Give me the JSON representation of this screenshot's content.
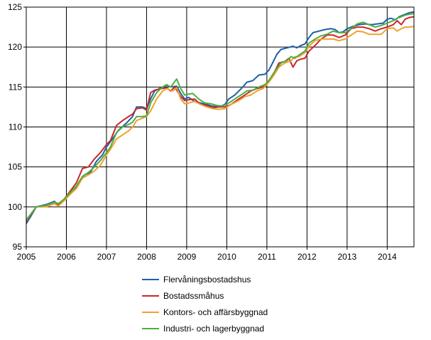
{
  "chart_data": {
    "type": "line",
    "title": "",
    "xlabel": "",
    "ylabel": "",
    "xlim": [
      2005.0,
      2014.667
    ],
    "ylim": [
      95,
      125
    ],
    "x_ticks": [
      "2005",
      "2006",
      "2007",
      "2008",
      "2009",
      "2010",
      "2011",
      "2012",
      "2013",
      "2014"
    ],
    "y_ticks": [
      "95",
      "100",
      "105",
      "110",
      "115",
      "120",
      "125"
    ],
    "grid": true,
    "legend_position": "bottom",
    "series": [
      {
        "name": "Flervåningsbostadshus",
        "color": "#1f5fa8",
        "points": [
          [
            2005.0,
            97.9
          ],
          [
            2005.1,
            98.7
          ],
          [
            2005.25,
            100.0
          ],
          [
            2005.5,
            100.3
          ],
          [
            2005.7,
            100.7
          ],
          [
            2005.8,
            100.3
          ],
          [
            2005.95,
            100.9
          ],
          [
            2006.1,
            101.9
          ],
          [
            2006.25,
            102.5
          ],
          [
            2006.45,
            104.0
          ],
          [
            2006.6,
            104.3
          ],
          [
            2006.75,
            105.7
          ],
          [
            2006.9,
            106.5
          ],
          [
            2007.0,
            107.5
          ],
          [
            2007.15,
            108.5
          ],
          [
            2007.3,
            109.6
          ],
          [
            2007.5,
            110.5
          ],
          [
            2007.65,
            111.3
          ],
          [
            2007.75,
            112.5
          ],
          [
            2007.9,
            112.5
          ],
          [
            2008.0,
            112.3
          ],
          [
            2008.1,
            113.5
          ],
          [
            2008.2,
            114.5
          ],
          [
            2008.4,
            115.0
          ],
          [
            2008.5,
            115.2
          ],
          [
            2008.6,
            115.0
          ],
          [
            2008.75,
            115.1
          ],
          [
            2008.85,
            114.2
          ],
          [
            2008.95,
            113.5
          ],
          [
            2009.05,
            113.7
          ],
          [
            2009.2,
            113.2
          ],
          [
            2009.35,
            113.0
          ],
          [
            2009.5,
            112.8
          ],
          [
            2009.65,
            112.6
          ],
          [
            2009.8,
            112.5
          ],
          [
            2009.95,
            112.8
          ],
          [
            2010.05,
            113.5
          ],
          [
            2010.2,
            114.0
          ],
          [
            2010.4,
            115.0
          ],
          [
            2010.5,
            115.6
          ],
          [
            2010.65,
            115.8
          ],
          [
            2010.8,
            116.5
          ],
          [
            2010.95,
            116.6
          ],
          [
            2011.05,
            117.1
          ],
          [
            2011.15,
            118.1
          ],
          [
            2011.25,
            119.1
          ],
          [
            2011.35,
            119.7
          ],
          [
            2011.5,
            119.9
          ],
          [
            2011.65,
            120.1
          ],
          [
            2011.75,
            119.9
          ],
          [
            2011.85,
            120.2
          ],
          [
            2011.95,
            120.4
          ],
          [
            2012.05,
            121.2
          ],
          [
            2012.15,
            121.8
          ],
          [
            2012.3,
            122.0
          ],
          [
            2012.45,
            122.2
          ],
          [
            2012.6,
            122.3
          ],
          [
            2012.7,
            122.2
          ],
          [
            2012.8,
            121.8
          ],
          [
            2012.9,
            121.9
          ],
          [
            2013.0,
            122.3
          ],
          [
            2013.15,
            122.6
          ],
          [
            2013.3,
            122.8
          ],
          [
            2013.45,
            122.9
          ],
          [
            2013.6,
            122.8
          ],
          [
            2013.75,
            122.9
          ],
          [
            2013.9,
            123.0
          ],
          [
            2014.0,
            123.5
          ],
          [
            2014.1,
            123.6
          ],
          [
            2014.2,
            123.4
          ],
          [
            2014.3,
            123.8
          ],
          [
            2014.4,
            124.0
          ],
          [
            2014.55,
            124.3
          ],
          [
            2014.667,
            124.4
          ]
        ]
      },
      {
        "name": "Bostadssmåhus",
        "color": "#c8272d",
        "points": [
          [
            2005.0,
            98.2
          ],
          [
            2005.1,
            98.9
          ],
          [
            2005.25,
            100.0
          ],
          [
            2005.5,
            100.1
          ],
          [
            2005.7,
            100.6
          ],
          [
            2005.8,
            100.3
          ],
          [
            2005.95,
            101.0
          ],
          [
            2006.1,
            102.0
          ],
          [
            2006.25,
            103.0
          ],
          [
            2006.4,
            104.8
          ],
          [
            2006.55,
            105.0
          ],
          [
            2006.7,
            106.0
          ],
          [
            2006.85,
            106.8
          ],
          [
            2007.0,
            107.8
          ],
          [
            2007.1,
            108.3
          ],
          [
            2007.25,
            110.2
          ],
          [
            2007.4,
            110.8
          ],
          [
            2007.55,
            111.3
          ],
          [
            2007.65,
            111.6
          ],
          [
            2007.75,
            112.3
          ],
          [
            2007.9,
            112.4
          ],
          [
            2008.0,
            112.1
          ],
          [
            2008.1,
            114.3
          ],
          [
            2008.2,
            114.6
          ],
          [
            2008.35,
            114.8
          ],
          [
            2008.5,
            114.9
          ],
          [
            2008.6,
            114.5
          ],
          [
            2008.7,
            115.0
          ],
          [
            2008.85,
            113.8
          ],
          [
            2008.95,
            113.3
          ],
          [
            2009.05,
            113.4
          ],
          [
            2009.2,
            113.5
          ],
          [
            2009.35,
            112.8
          ],
          [
            2009.5,
            112.7
          ],
          [
            2009.65,
            112.4
          ],
          [
            2009.8,
            112.5
          ],
          [
            2009.95,
            112.5
          ],
          [
            2010.1,
            112.8
          ],
          [
            2010.3,
            113.5
          ],
          [
            2010.45,
            114.0
          ],
          [
            2010.6,
            114.5
          ],
          [
            2010.75,
            114.8
          ],
          [
            2010.9,
            115.0
          ],
          [
            2011.0,
            115.5
          ],
          [
            2011.15,
            116.5
          ],
          [
            2011.3,
            118.0
          ],
          [
            2011.45,
            118.2
          ],
          [
            2011.55,
            118.6
          ],
          [
            2011.65,
            117.5
          ],
          [
            2011.75,
            118.3
          ],
          [
            2011.85,
            118.5
          ],
          [
            2011.95,
            118.6
          ],
          [
            2012.05,
            119.5
          ],
          [
            2012.2,
            120.2
          ],
          [
            2012.35,
            121.0
          ],
          [
            2012.5,
            121.5
          ],
          [
            2012.65,
            121.5
          ],
          [
            2012.8,
            121.2
          ],
          [
            2012.95,
            121.5
          ],
          [
            2013.1,
            122.3
          ],
          [
            2013.25,
            122.5
          ],
          [
            2013.4,
            122.5
          ],
          [
            2013.55,
            122.3
          ],
          [
            2013.7,
            122.0
          ],
          [
            2013.85,
            122.3
          ],
          [
            2014.0,
            122.5
          ],
          [
            2014.15,
            122.8
          ],
          [
            2014.25,
            123.3
          ],
          [
            2014.35,
            122.8
          ],
          [
            2014.45,
            123.5
          ],
          [
            2014.55,
            123.7
          ],
          [
            2014.667,
            123.8
          ]
        ]
      },
      {
        "name": "Kontors- och affärsbyggnad",
        "color": "#f0a030",
        "points": [
          [
            2005.0,
            98.3
          ],
          [
            2005.1,
            99.0
          ],
          [
            2005.25,
            100.0
          ],
          [
            2005.5,
            100.0
          ],
          [
            2005.7,
            100.4
          ],
          [
            2005.8,
            100.1
          ],
          [
            2005.95,
            100.8
          ],
          [
            2006.1,
            101.6
          ],
          [
            2006.25,
            102.3
          ],
          [
            2006.4,
            103.6
          ],
          [
            2006.55,
            104.0
          ],
          [
            2006.7,
            104.5
          ],
          [
            2006.85,
            105.2
          ],
          [
            2007.0,
            106.5
          ],
          [
            2007.1,
            107.2
          ],
          [
            2007.25,
            108.5
          ],
          [
            2007.4,
            109.0
          ],
          [
            2007.55,
            109.5
          ],
          [
            2007.65,
            110.0
          ],
          [
            2007.75,
            110.8
          ],
          [
            2007.9,
            111.1
          ],
          [
            2008.0,
            111.3
          ],
          [
            2008.1,
            112.0
          ],
          [
            2008.25,
            113.5
          ],
          [
            2008.4,
            114.5
          ],
          [
            2008.5,
            114.8
          ],
          [
            2008.65,
            114.5
          ],
          [
            2008.75,
            114.9
          ],
          [
            2008.85,
            113.5
          ],
          [
            2008.95,
            112.9
          ],
          [
            2009.05,
            113.0
          ],
          [
            2009.2,
            113.2
          ],
          [
            2009.35,
            112.8
          ],
          [
            2009.5,
            112.5
          ],
          [
            2009.65,
            112.3
          ],
          [
            2009.8,
            112.2
          ],
          [
            2009.95,
            112.3
          ],
          [
            2010.1,
            112.8
          ],
          [
            2010.3,
            113.3
          ],
          [
            2010.45,
            113.8
          ],
          [
            2010.6,
            114.0
          ],
          [
            2010.75,
            114.5
          ],
          [
            2010.9,
            114.8
          ],
          [
            2011.0,
            115.3
          ],
          [
            2011.15,
            116.3
          ],
          [
            2011.3,
            117.5
          ],
          [
            2011.45,
            118.0
          ],
          [
            2011.6,
            118.3
          ],
          [
            2011.7,
            118.8
          ],
          [
            2011.8,
            118.8
          ],
          [
            2011.95,
            119.3
          ],
          [
            2012.05,
            120.1
          ],
          [
            2012.2,
            120.8
          ],
          [
            2012.35,
            121.0
          ],
          [
            2012.5,
            121.0
          ],
          [
            2012.65,
            121.0
          ],
          [
            2012.8,
            120.8
          ],
          [
            2012.95,
            121.0
          ],
          [
            2013.1,
            121.5
          ],
          [
            2013.25,
            122.0
          ],
          [
            2013.4,
            121.9
          ],
          [
            2013.55,
            121.6
          ],
          [
            2013.7,
            121.6
          ],
          [
            2013.85,
            121.6
          ],
          [
            2014.0,
            122.3
          ],
          [
            2014.15,
            122.4
          ],
          [
            2014.25,
            122.0
          ],
          [
            2014.35,
            122.3
          ],
          [
            2014.45,
            122.5
          ],
          [
            2014.55,
            122.5
          ],
          [
            2014.667,
            122.6
          ]
        ]
      },
      {
        "name": "Industri- och lagerbyggnad",
        "color": "#4cae3c",
        "points": [
          [
            2005.0,
            98.4
          ],
          [
            2005.1,
            99.0
          ],
          [
            2005.25,
            100.0
          ],
          [
            2005.5,
            100.2
          ],
          [
            2005.7,
            100.6
          ],
          [
            2005.8,
            100.4
          ],
          [
            2005.95,
            101.0
          ],
          [
            2006.1,
            101.8
          ],
          [
            2006.25,
            102.6
          ],
          [
            2006.4,
            103.8
          ],
          [
            2006.55,
            104.3
          ],
          [
            2006.7,
            105.0
          ],
          [
            2006.85,
            105.8
          ],
          [
            2007.0,
            106.8
          ],
          [
            2007.1,
            107.5
          ],
          [
            2007.25,
            109.3
          ],
          [
            2007.4,
            110.0
          ],
          [
            2007.55,
            110.3
          ],
          [
            2007.65,
            110.6
          ],
          [
            2007.75,
            111.3
          ],
          [
            2007.9,
            111.3
          ],
          [
            2008.0,
            111.4
          ],
          [
            2008.1,
            113.0
          ],
          [
            2008.25,
            114.3
          ],
          [
            2008.4,
            115.0
          ],
          [
            2008.5,
            115.3
          ],
          [
            2008.6,
            115.0
          ],
          [
            2008.75,
            116.0
          ],
          [
            2008.85,
            114.8
          ],
          [
            2008.95,
            114.0
          ],
          [
            2009.05,
            114.1
          ],
          [
            2009.15,
            114.2
          ],
          [
            2009.3,
            113.5
          ],
          [
            2009.45,
            113.0
          ],
          [
            2009.6,
            112.9
          ],
          [
            2009.75,
            112.7
          ],
          [
            2009.9,
            112.6
          ],
          [
            2010.05,
            113.0
          ],
          [
            2010.2,
            113.5
          ],
          [
            2010.35,
            114.0
          ],
          [
            2010.5,
            114.5
          ],
          [
            2010.65,
            114.6
          ],
          [
            2010.8,
            115.0
          ],
          [
            2010.95,
            115.3
          ],
          [
            2011.05,
            115.8
          ],
          [
            2011.2,
            117.0
          ],
          [
            2011.35,
            118.0
          ],
          [
            2011.5,
            118.3
          ],
          [
            2011.6,
            118.8
          ],
          [
            2011.7,
            118.6
          ],
          [
            2011.8,
            119.0
          ],
          [
            2011.95,
            119.5
          ],
          [
            2012.05,
            120.5
          ],
          [
            2012.2,
            121.0
          ],
          [
            2012.35,
            121.4
          ],
          [
            2012.5,
            121.6
          ],
          [
            2012.65,
            122.0
          ],
          [
            2012.8,
            121.8
          ],
          [
            2012.95,
            121.8
          ],
          [
            2013.1,
            122.3
          ],
          [
            2013.25,
            122.9
          ],
          [
            2013.4,
            123.1
          ],
          [
            2013.55,
            122.8
          ],
          [
            2013.7,
            122.5
          ],
          [
            2013.85,
            122.7
          ],
          [
            2014.0,
            123.0
          ],
          [
            2014.15,
            123.3
          ],
          [
            2014.25,
            123.6
          ],
          [
            2014.35,
            123.8
          ],
          [
            2014.45,
            124.0
          ],
          [
            2014.55,
            124.1
          ],
          [
            2014.667,
            124.2
          ]
        ]
      }
    ]
  }
}
